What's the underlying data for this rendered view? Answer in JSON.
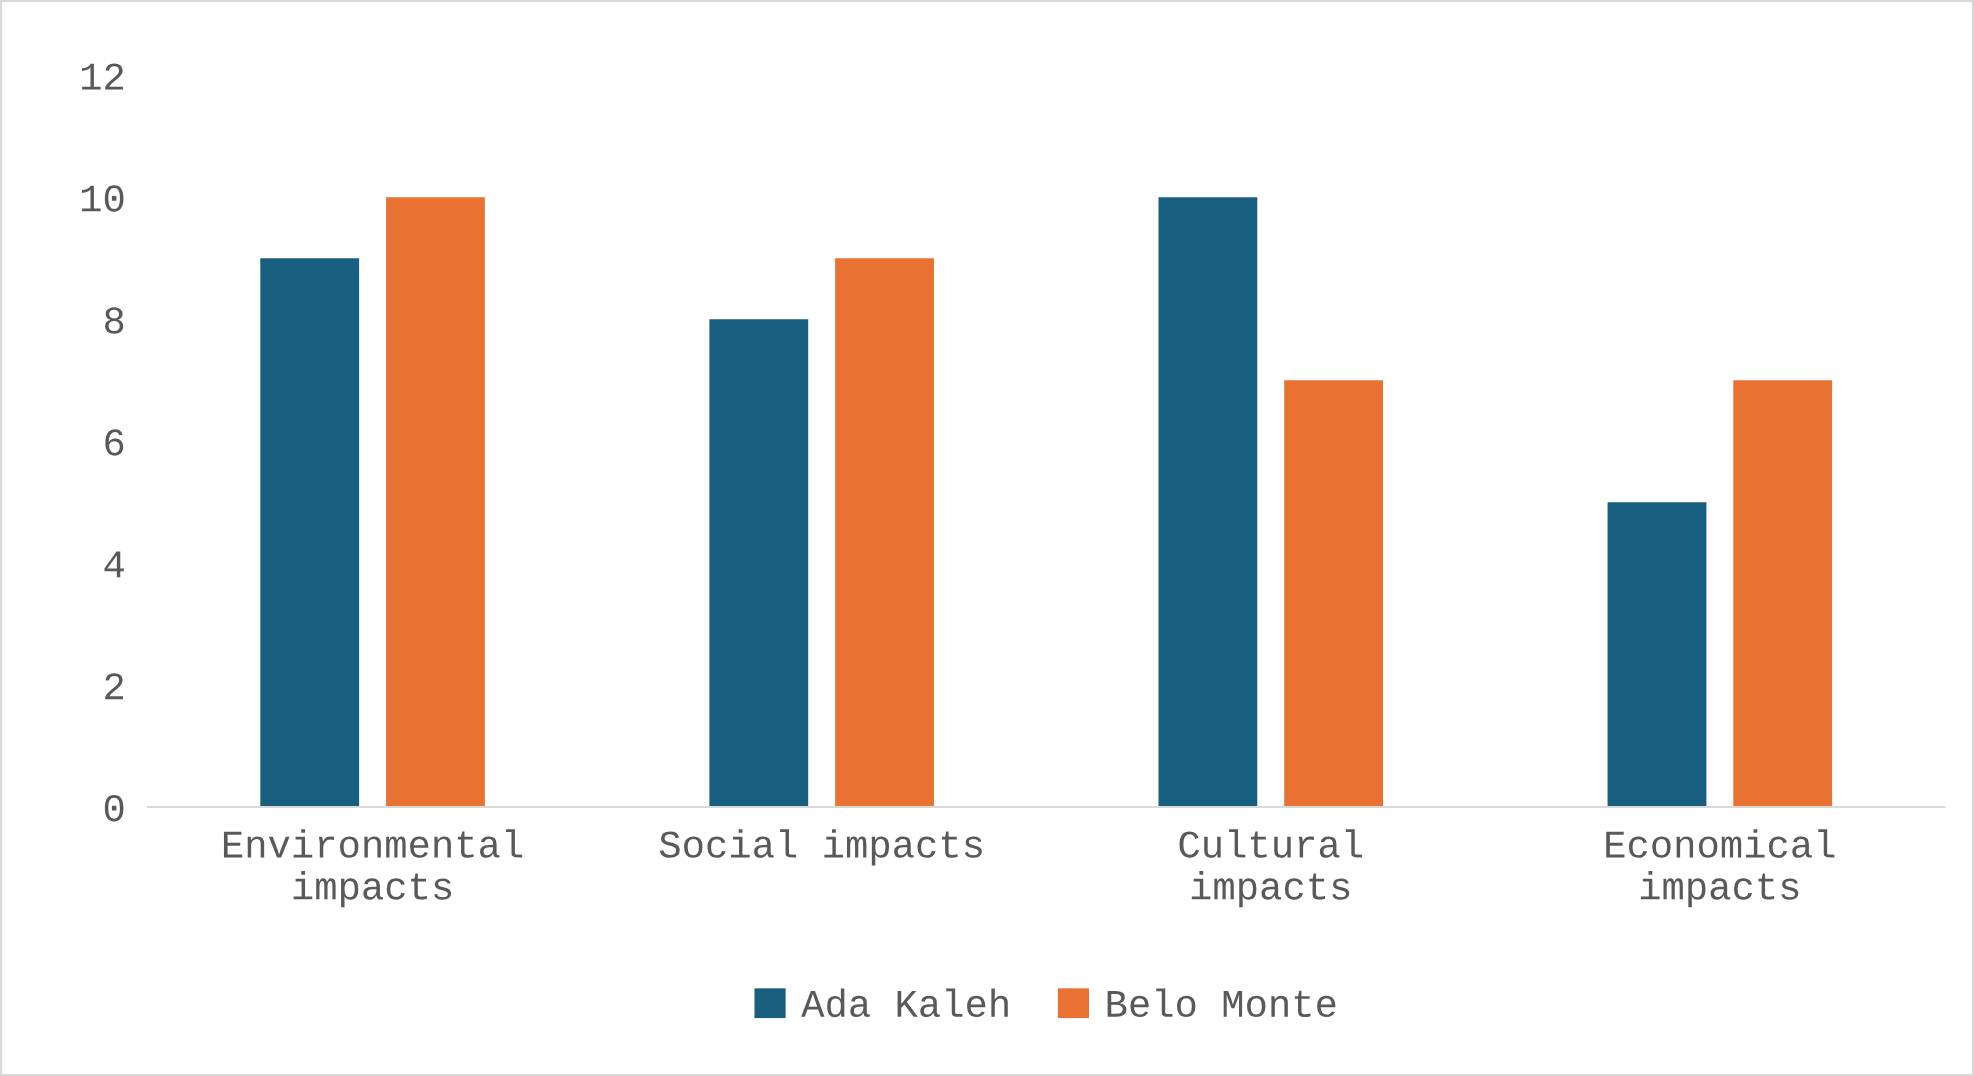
{
  "chart_data": {
    "type": "bar",
    "categories": [
      "Environmental impacts",
      "Social impacts",
      "Cultural impacts",
      "Economical impacts"
    ],
    "series": [
      {
        "name": "Ada Kaleh",
        "color": "#175e7f",
        "values": [
          9,
          8,
          10,
          5
        ]
      },
      {
        "name": "Belo Monte",
        "color": "#e97132",
        "values": [
          10,
          9,
          7,
          7
        ]
      }
    ],
    "ylim": [
      0,
      12
    ],
    "yticks": [
      0,
      2,
      4,
      6,
      8,
      10,
      12
    ],
    "grid": false,
    "legend": "bottom"
  }
}
